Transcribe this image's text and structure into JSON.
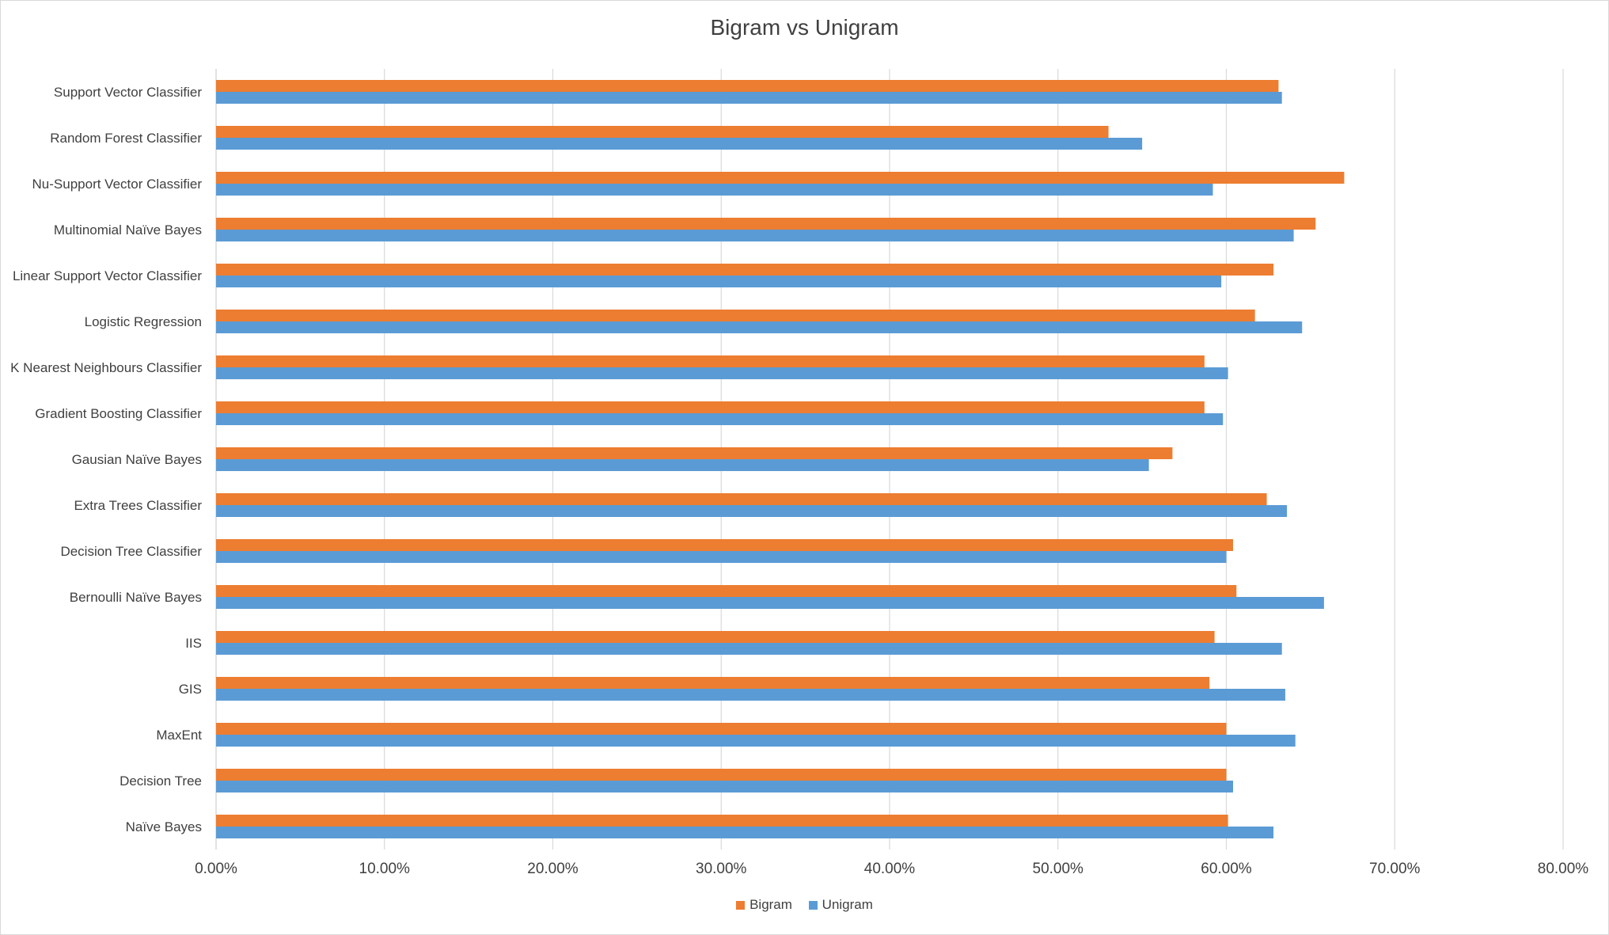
{
  "chart_data": {
    "type": "bar",
    "orientation": "horizontal",
    "title": "Bigram vs Unigram",
    "xlabel": "",
    "ylabel": "",
    "xlim": [
      0,
      80
    ],
    "x_ticks": [
      "0.00%",
      "10.00%",
      "20.00%",
      "30.00%",
      "40.00%",
      "50.00%",
      "60.00%",
      "70.00%",
      "80.00%"
    ],
    "grid": "vertical",
    "legend_position": "bottom",
    "categories": [
      "Support Vector Classifier",
      "Random Forest Classifier",
      "Nu-Support Vector Classifier",
      "Multinomial Naïve Bayes",
      "Linear Support Vector Classifier",
      "Logistic Regression",
      "K Nearest Neighbours Classifier",
      "Gradient Boosting Classifier",
      "Gausian Naïve Bayes",
      "Extra Trees Classifier",
      "Decision Tree Classifier",
      "Bernoulli Naïve Bayes",
      "IIS",
      "GIS",
      "MaxEnt",
      "Decision Tree",
      "Naïve Bayes"
    ],
    "series": [
      {
        "name": "Bigram",
        "color": "#ed7d31",
        "values": [
          63.1,
          53.0,
          67.0,
          65.3,
          62.8,
          61.7,
          58.7,
          58.7,
          56.8,
          62.4,
          60.4,
          60.6,
          59.3,
          59.0,
          60.0,
          60.0,
          60.1
        ]
      },
      {
        "name": "Unigram",
        "color": "#5b9bd5",
        "values": [
          63.3,
          55.0,
          59.2,
          64.0,
          59.7,
          64.5,
          60.1,
          59.8,
          55.4,
          63.6,
          60.0,
          65.8,
          63.3,
          63.5,
          64.1,
          60.4,
          62.8
        ]
      }
    ]
  }
}
